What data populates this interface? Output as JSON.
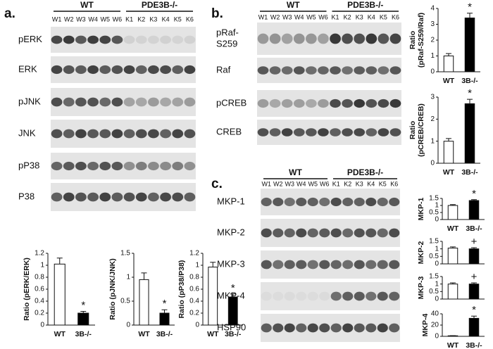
{
  "panel_a": {
    "label": "a.",
    "groups": [
      "WT",
      "PDE3B-/-"
    ],
    "lanes": [
      "W1",
      "W2",
      "W3",
      "W4",
      "W5",
      "W6",
      "K1",
      "K2",
      "K3",
      "K4",
      "K5",
      "K6"
    ],
    "blots": [
      [
        "pERK"
      ],
      [
        "ERK"
      ],
      [
        "pJNK"
      ],
      [
        "JNK"
      ],
      [
        "pP38"
      ],
      [
        "P38"
      ]
    ]
  },
  "panel_b": {
    "label": "b.",
    "groups": [
      "WT",
      "PDE3B-/-"
    ],
    "lanes": [
      "W1",
      "W2",
      "W3",
      "W4",
      "W5",
      "W6",
      "K1",
      "K2",
      "K3",
      "K4",
      "K5",
      "K6"
    ],
    "blots": [
      [
        "pRaf-",
        "S259"
      ],
      [
        "Raf"
      ],
      [
        "pCREB"
      ],
      [
        "CREB"
      ]
    ]
  },
  "panel_c": {
    "label": "c.",
    "groups": [
      "WT",
      "PDE3B-/-"
    ],
    "lanes": [
      "W1",
      "W2",
      "W3",
      "W4",
      "W5",
      "W6",
      "K1",
      "K2",
      "K3",
      "K4",
      "K5",
      "K6"
    ],
    "blots": [
      [
        "MKP-1"
      ],
      [
        "MKP-2"
      ],
      [
        "MKP-3"
      ],
      [
        "MKP-4"
      ],
      [
        "HSP90"
      ]
    ]
  },
  "chart_data": [
    {
      "type": "bar",
      "ylabel": [
        "Ratio (pERK/ERK)"
      ],
      "categories": [
        "WT",
        "3B-/-"
      ],
      "values": [
        1.02,
        0.2
      ],
      "errors": [
        0.1,
        0.03
      ],
      "colors": [
        "#ffffff",
        "#000000"
      ],
      "annotation": "*",
      "ylim": [
        0,
        1.2
      ],
      "yticks": [
        0,
        0.2,
        0.4,
        0.6,
        0.8,
        1,
        1.2
      ]
    },
    {
      "type": "bar",
      "ylabel": [
        "Ratio (pJNK/JNK)"
      ],
      "categories": [
        "WT",
        "3B-/-"
      ],
      "values": [
        0.95,
        0.25
      ],
      "errors": [
        0.14,
        0.07
      ],
      "colors": [
        "#ffffff",
        "#000000"
      ],
      "annotation": "*",
      "ylim": [
        0,
        1.5
      ],
      "yticks": [
        0,
        0.5,
        1,
        1.5
      ]
    },
    {
      "type": "bar",
      "ylabel": [
        "Ratio (pP38/P38)"
      ],
      "categories": [
        "WT",
        "3B-/-"
      ],
      "values": [
        0.97,
        0.47
      ],
      "errors": [
        0.08,
        0.05
      ],
      "colors": [
        "#ffffff",
        "#000000"
      ],
      "annotation": "*",
      "ylim": [
        0,
        1.2
      ],
      "yticks": [
        0,
        0.2,
        0.4,
        0.6,
        0.8,
        1,
        1.2
      ]
    },
    {
      "type": "bar",
      "ylabel": [
        "Ratio",
        "(pRaf-S259/Raf)"
      ],
      "categories": [
        "WT",
        "3B-/-"
      ],
      "values": [
        1.0,
        3.4
      ],
      "errors": [
        0.15,
        0.3
      ],
      "colors": [
        "#ffffff",
        "#000000"
      ],
      "annotation": "*",
      "ylim": [
        0,
        4
      ],
      "yticks": [
        0,
        1,
        2,
        3,
        4
      ]
    },
    {
      "type": "bar",
      "ylabel": [
        "Ratio",
        "(pCREB/CREB)"
      ],
      "categories": [
        "WT",
        "3B-/-"
      ],
      "values": [
        1.0,
        2.7
      ],
      "errors": [
        0.12,
        0.2
      ],
      "colors": [
        "#ffffff",
        "#000000"
      ],
      "annotation": "*",
      "ylim": [
        0,
        3
      ],
      "yticks": [
        0,
        1,
        2,
        3
      ]
    },
    {
      "type": "bar",
      "ylabel": [
        "MKP-1"
      ],
      "categories": [
        "WT",
        "3B-/-"
      ],
      "values": [
        1.0,
        1.35
      ],
      "errors": [
        0.06,
        0.06
      ],
      "colors": [
        "#ffffff",
        "#000000"
      ],
      "annotation": "*",
      "ylim": [
        0,
        1.5
      ],
      "yticks": [
        0,
        0.5,
        1,
        1.5
      ]
    },
    {
      "type": "bar",
      "ylabel": [
        "MKP-2"
      ],
      "categories": [
        null,
        null
      ],
      "values": [
        1.05,
        1.0
      ],
      "errors": [
        0.08,
        0.08
      ],
      "colors": [
        "#ffffff",
        "#000000"
      ],
      "annotation": "+",
      "ylim": [
        0,
        1.5
      ],
      "yticks": [
        0,
        0.5,
        1,
        1.5
      ]
    },
    {
      "type": "bar",
      "ylabel": [
        "MKP-3"
      ],
      "categories": [
        null,
        null
      ],
      "values": [
        1.0,
        1.0
      ],
      "errors": [
        0.08,
        0.08
      ],
      "colors": [
        "#ffffff",
        "#000000"
      ],
      "annotation": "+",
      "ylim": [
        0,
        1.5
      ],
      "yticks": [
        0,
        0.5,
        1,
        1.5
      ]
    },
    {
      "type": "bar",
      "ylabel": [
        "MKP-4"
      ],
      "categories": [
        "WT",
        "3B-/-"
      ],
      "values": [
        1,
        32
      ],
      "errors": [
        0.3,
        4
      ],
      "colors": [
        "#ffffff",
        "#000000"
      ],
      "annotation": "*",
      "ylim": [
        0,
        40
      ],
      "yticks": [
        0,
        20,
        40
      ]
    }
  ]
}
